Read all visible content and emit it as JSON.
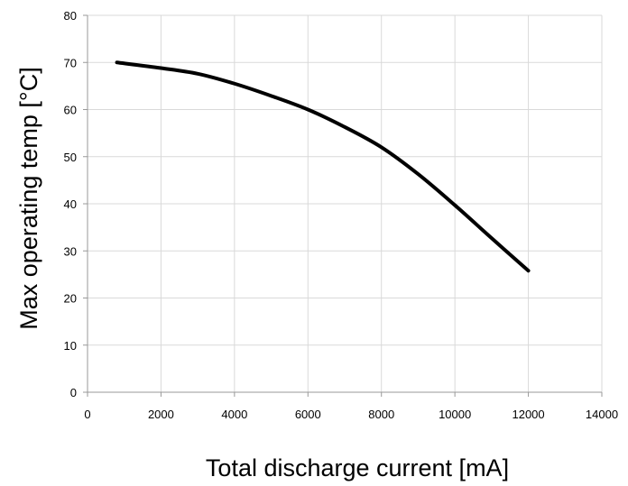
{
  "chart_data": {
    "type": "line",
    "title": "",
    "xlabel": "Total discharge current [mA]",
    "ylabel": "Max operating temp [°C]",
    "xlim": [
      0,
      14000
    ],
    "ylim": [
      0,
      80
    ],
    "x_ticks": [
      0,
      2000,
      4000,
      6000,
      8000,
      10000,
      12000,
      14000
    ],
    "y_ticks": [
      0,
      10,
      20,
      30,
      40,
      50,
      60,
      70,
      80
    ],
    "grid": true,
    "legend": "none",
    "series": [
      {
        "color": "#000000",
        "x": [
          800,
          2000,
          3000,
          4000,
          5000,
          6000,
          7000,
          8000,
          9000,
          10000,
          11000,
          12000
        ],
        "y": [
          70,
          68.8,
          67.6,
          65.5,
          62.9,
          60.0,
          56.3,
          52.0,
          46.3,
          39.7,
          32.7,
          25.8
        ]
      }
    ]
  }
}
